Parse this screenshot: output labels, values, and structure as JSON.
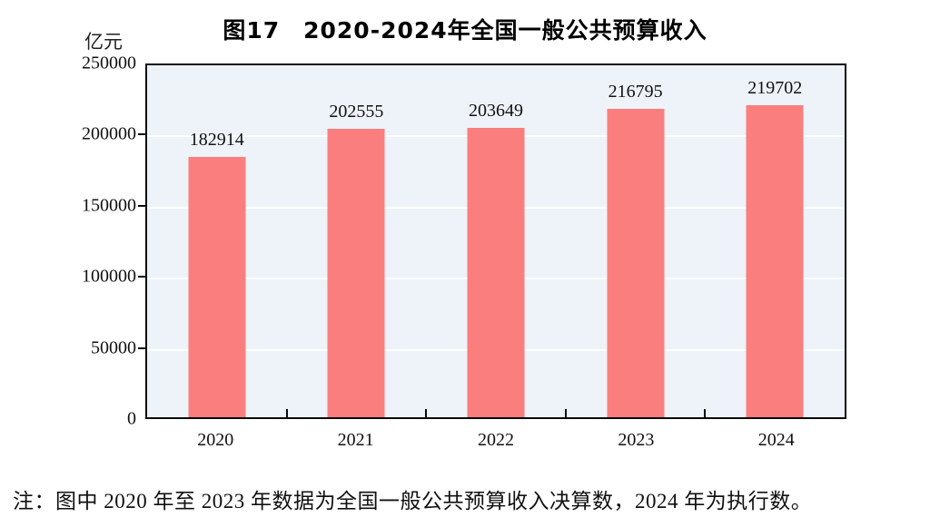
{
  "chart_data": {
    "type": "bar",
    "title": "图17　2020-2024年全国一般公共预算收入",
    "unit_label": "亿元",
    "categories": [
      "2020",
      "2021",
      "2022",
      "2023",
      "2024"
    ],
    "values": [
      182914,
      202555,
      203649,
      216795,
      219702
    ],
    "value_labels": [
      "182914",
      "202555",
      "203649",
      "216795",
      "219702"
    ],
    "ylim": [
      0,
      250000
    ],
    "yticks": [
      0,
      50000,
      100000,
      150000,
      200000,
      250000
    ],
    "ytick_labels": [
      "0",
      "50000",
      "100000",
      "150000",
      "200000",
      "250000"
    ],
    "grid": true,
    "legend_position": "none",
    "colors": {
      "bar": "#FB7E7E",
      "plot_background": "#EDF3F8",
      "gridline": "#FFFFFF",
      "axis_border": "#0A0A0A",
      "text": "#111111"
    }
  },
  "note": {
    "text": "注：图中 2020 年至 2023 年数据为全国一般公共预算收入决算数，2024 年为执行数。"
  }
}
